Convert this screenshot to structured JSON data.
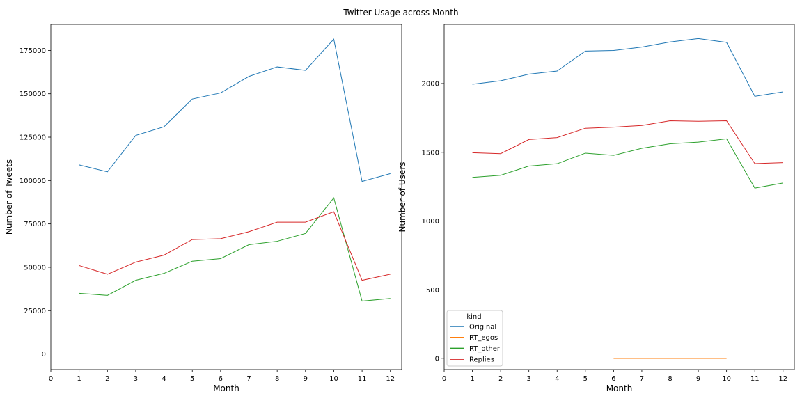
{
  "figure": {
    "title": "Twitter Usage across Month"
  },
  "legend": {
    "title": "kind",
    "placement": "lower-left of right panel",
    "entries": [
      {
        "name": "Original",
        "color": "#1f77b4"
      },
      {
        "name": "RT_egos",
        "color": "#ff7f0e"
      },
      {
        "name": "RT_other",
        "color": "#2ca02c"
      },
      {
        "name": "Replies",
        "color": "#d62728"
      }
    ]
  },
  "chart_data": [
    {
      "type": "line",
      "xlabel": "Month",
      "ylabel": "Number of Tweets",
      "xlim": [
        0,
        12.4
      ],
      "ylim": [
        -9000,
        190000
      ],
      "xticks": [
        0,
        1,
        2,
        3,
        4,
        5,
        6,
        7,
        8,
        9,
        10,
        11,
        12
      ],
      "yticks": [
        0,
        25000,
        50000,
        75000,
        100000,
        125000,
        150000,
        175000
      ],
      "ytick_labels": [
        "0",
        "25000",
        "50000",
        "75000",
        "100000",
        "125000",
        "150000",
        "175000"
      ],
      "grid": false,
      "series": [
        {
          "name": "Original",
          "color": "#1f77b4",
          "x": [
            1,
            2,
            3,
            4,
            5,
            6,
            7,
            8,
            9,
            10,
            11,
            12
          ],
          "values": [
            109000,
            105000,
            126000,
            131000,
            147000,
            150500,
            160000,
            165500,
            163500,
            181500,
            99500,
            104000
          ]
        },
        {
          "name": "RT_egos",
          "color": "#ff7f0e",
          "x": [
            6,
            7,
            8,
            9,
            10
          ],
          "values": [
            10,
            20,
            30,
            40,
            50
          ]
        },
        {
          "name": "RT_other",
          "color": "#2ca02c",
          "x": [
            1,
            2,
            3,
            4,
            5,
            6,
            7,
            8,
            9,
            10,
            11,
            12
          ],
          "values": [
            35000,
            33800,
            42500,
            46500,
            53500,
            55000,
            63000,
            65000,
            69500,
            90000,
            30500,
            32000
          ]
        },
        {
          "name": "Replies",
          "color": "#d62728",
          "x": [
            1,
            2,
            3,
            4,
            5,
            6,
            7,
            8,
            9,
            10,
            11,
            12
          ],
          "values": [
            51000,
            46000,
            53000,
            57000,
            66000,
            66500,
            70500,
            76000,
            76000,
            82000,
            42500,
            46000
          ]
        }
      ]
    },
    {
      "type": "line",
      "xlabel": "Month",
      "ylabel": "Number of Users",
      "xlim": [
        0,
        12.4
      ],
      "ylim": [
        -80,
        2430
      ],
      "xticks": [
        0,
        1,
        2,
        3,
        4,
        5,
        6,
        7,
        8,
        9,
        10,
        11,
        12
      ],
      "yticks": [
        0,
        500,
        1000,
        1500,
        2000
      ],
      "ytick_labels": [
        "0",
        "500",
        "1000",
        "1500",
        "2000"
      ],
      "grid": false,
      "series": [
        {
          "name": "Original",
          "color": "#1f77b4",
          "x": [
            1,
            2,
            3,
            4,
            5,
            6,
            7,
            8,
            9,
            10,
            11,
            12
          ],
          "values": [
            1995,
            2020,
            2068,
            2091,
            2236,
            2240,
            2265,
            2302,
            2327,
            2299,
            1907,
            1939
          ]
        },
        {
          "name": "RT_egos",
          "color": "#ff7f0e",
          "x": [
            6,
            7,
            8,
            9,
            10
          ],
          "values": [
            1,
            1,
            1,
            1,
            1
          ]
        },
        {
          "name": "RT_other",
          "color": "#2ca02c",
          "x": [
            1,
            2,
            3,
            4,
            5,
            6,
            7,
            8,
            9,
            10,
            11,
            12
          ],
          "values": [
            1318,
            1333,
            1400,
            1417,
            1494,
            1478,
            1529,
            1562,
            1574,
            1598,
            1240,
            1277
          ]
        },
        {
          "name": "Replies",
          "color": "#d62728",
          "x": [
            1,
            2,
            3,
            4,
            5,
            6,
            7,
            8,
            9,
            10,
            11,
            12
          ],
          "values": [
            1497,
            1490,
            1593,
            1607,
            1675,
            1683,
            1695,
            1729,
            1725,
            1729,
            1418,
            1425
          ]
        }
      ]
    }
  ]
}
